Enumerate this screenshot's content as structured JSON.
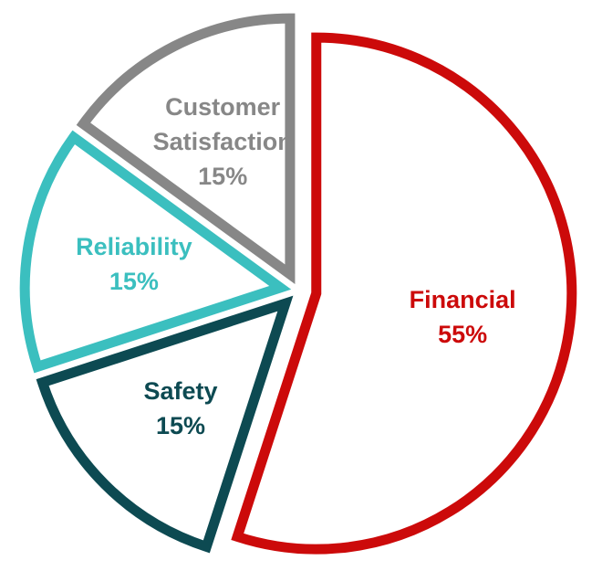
{
  "chart_data": {
    "type": "pie",
    "categories": [
      "Financial",
      "Safety",
      "Reliability",
      "Customer Satisfaction"
    ],
    "values": [
      55,
      15,
      15,
      15
    ],
    "value_labels": [
      "55%",
      "15%",
      "15%",
      "15%"
    ],
    "colors": [
      "#cc0a0a",
      "#0d4a52",
      "#3bbfbf",
      "#878787"
    ]
  }
}
